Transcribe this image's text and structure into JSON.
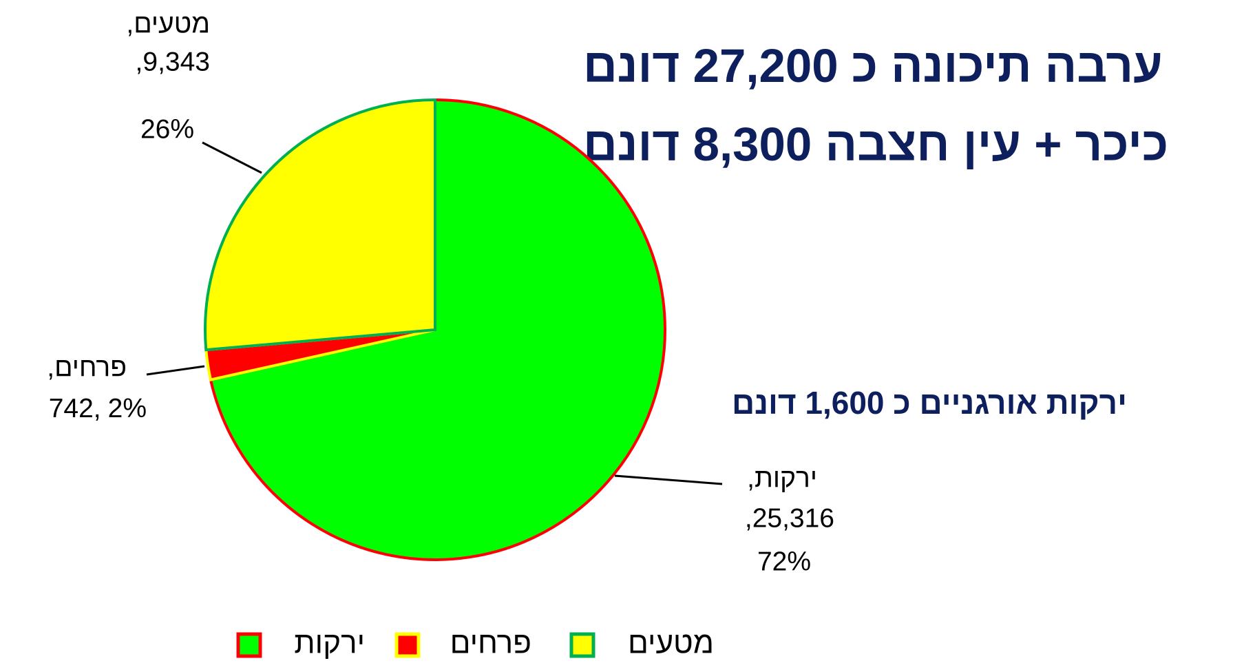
{
  "chart_data": {
    "type": "pie",
    "title": "ערבה תיכונה כ 27,200 דונם",
    "subtitle": "כיכר + עין חצבה 8,300 דונם",
    "annotation": "ירקות אורגניים כ 1,600 דונם",
    "categories": [
      "ירקות",
      "פרחים",
      "מטעים"
    ],
    "label_names": [
      "ירקות,",
      "פרחים,",
      "מטעים,"
    ],
    "values": [
      25316,
      742,
      9343
    ],
    "value_labels": [
      "25,316,",
      "742,",
      "9,343,"
    ],
    "percents": [
      72,
      2,
      26
    ],
    "percent_labels": [
      "72%",
      "2%",
      "26%"
    ],
    "colors": [
      "#00ff00",
      "#ff0000",
      "#ffff00"
    ],
    "edge_colors": [
      "#ff0000",
      "#ffff00",
      "#00b050"
    ],
    "legend": "bottom"
  }
}
